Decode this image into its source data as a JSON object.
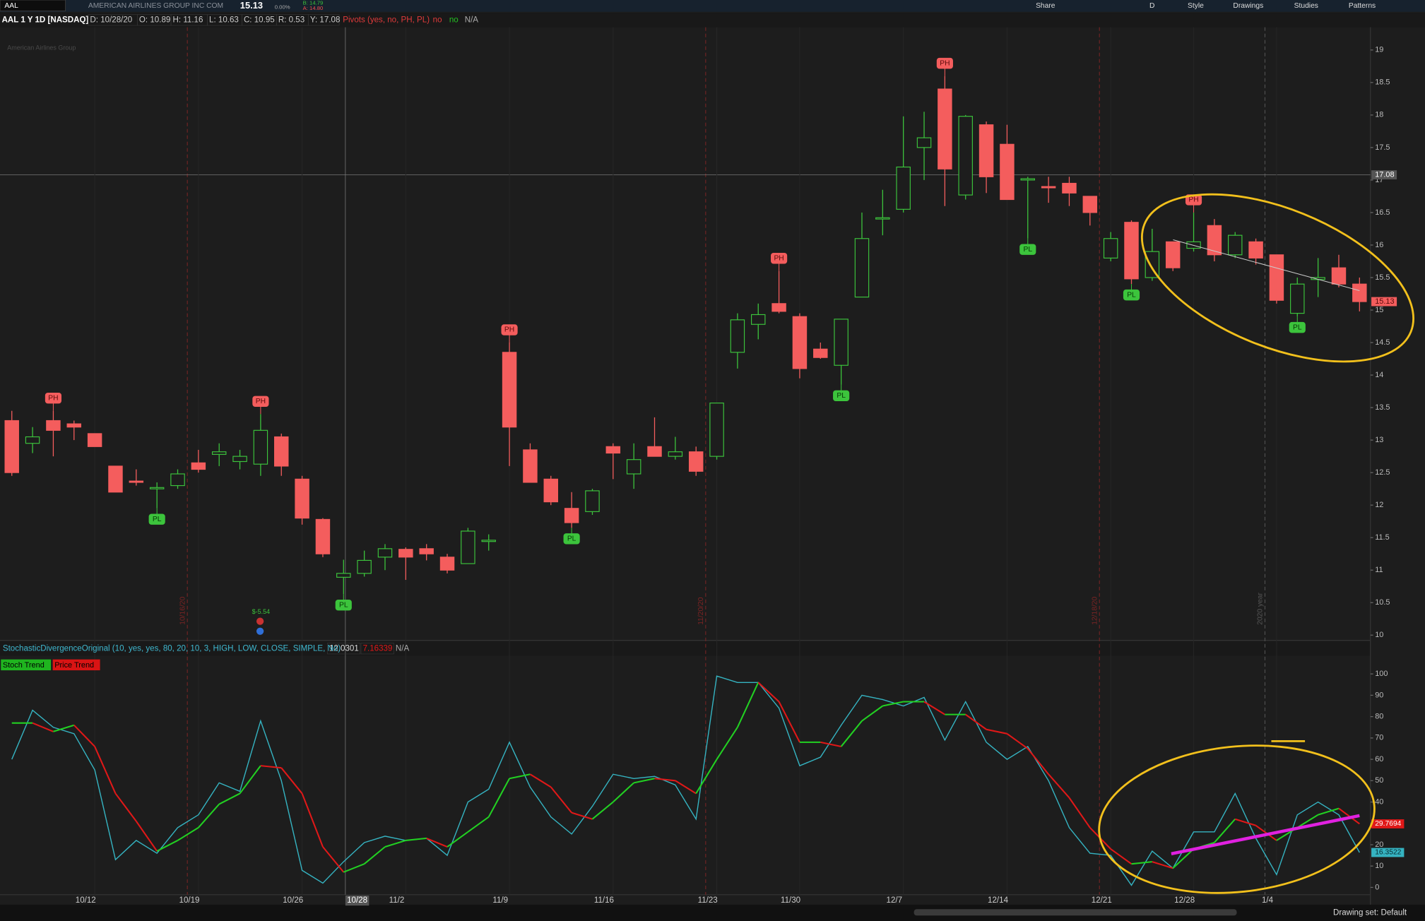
{
  "toolbar": {
    "symbol": "AAL",
    "company": "AMERICAN AIRLINES GROUP INC COM",
    "last": "15.13",
    "change": "0.00%",
    "bid": "B: 14.79",
    "ask": "A: 14.80",
    "buttons": [
      "Share",
      "D",
      "Style",
      "Drawings",
      "Studies",
      "Patterns"
    ]
  },
  "footer": {
    "drawing_set": "Drawing set: Default"
  },
  "chart_data": [
    {
      "type": "candlestick",
      "title": "AAL 1 Y 1D [NASDAQ]",
      "status": [
        "D: 10/28/20",
        "O: 10.89",
        "H: 11.16",
        "L: 10.63",
        "C: 10.95",
        "R: 0.53",
        "Y: 17.08"
      ],
      "study": "Pivots (yes, no, PH, PL)",
      "study_values": [
        "no",
        "no",
        "N/A"
      ],
      "watermark": "American Airlines Group",
      "categories": [
        null,
        null,
        null,
        null,
        "10/12",
        null,
        null,
        null,
        null,
        "10/19",
        null,
        null,
        null,
        null,
        "10/26",
        null,
        null,
        null,
        null,
        "11/2",
        null,
        null,
        null,
        null,
        "11/9",
        null,
        null,
        null,
        null,
        "11/16",
        null,
        null,
        null,
        null,
        "11/23",
        null,
        null,
        null,
        "11/30",
        null,
        null,
        null,
        null,
        "12/7",
        null,
        null,
        null,
        null,
        "12/14",
        null,
        null,
        null,
        null,
        "12/21",
        null,
        null,
        null,
        "12/28",
        null,
        null,
        null,
        "1/4",
        null,
        null,
        null,
        null
      ],
      "open": [
        13.3,
        12.95,
        13.3,
        13.25,
        13.1,
        12.6,
        12.37,
        12.25,
        12.3,
        12.65,
        12.78,
        12.67,
        12.63,
        13.05,
        12.4,
        11.78,
        10.89,
        10.95,
        11.2,
        11.32,
        11.33,
        11.2,
        11.1,
        11.44,
        14.35,
        12.85,
        12.4,
        11.95,
        11.9,
        12.9,
        12.48,
        12.9,
        12.75,
        12.82,
        12.75,
        14.35,
        14.78,
        15.1,
        14.9,
        14.4,
        14.15,
        15.2,
        16.4,
        16.55,
        17.5,
        18.4,
        16.77,
        17.85,
        17.55,
        17.0,
        16.9,
        16.95,
        16.75,
        15.8,
        16.35,
        15.5,
        16.05,
        15.95,
        16.3,
        15.85,
        16.05,
        15.85,
        14.95,
        15.47,
        15.65,
        15.4
      ],
      "high": [
        13.45,
        13.2,
        13.45,
        13.3,
        13.1,
        12.6,
        12.55,
        12.35,
        12.55,
        12.85,
        12.95,
        12.85,
        13.4,
        13.1,
        12.45,
        11.8,
        11.16,
        11.3,
        11.4,
        11.35,
        11.4,
        11.25,
        11.65,
        11.55,
        14.5,
        12.95,
        12.45,
        12.2,
        12.25,
        12.95,
        12.95,
        13.35,
        13.05,
        12.9,
        13.57,
        14.95,
        15.1,
        15.6,
        14.95,
        14.5,
        14.86,
        16.5,
        16.85,
        17.98,
        18.05,
        18.6,
        18.0,
        17.9,
        17.85,
        17.05,
        17.05,
        17.05,
        16.75,
        16.2,
        16.38,
        16.25,
        16.05,
        16.5,
        16.4,
        16.2,
        16.1,
        15.85,
        15.5,
        15.8,
        15.85,
        15.5
      ],
      "low": [
        12.45,
        12.8,
        12.75,
        13.0,
        12.9,
        12.2,
        12.3,
        11.95,
        12.25,
        12.5,
        12.6,
        12.55,
        12.45,
        12.45,
        11.7,
        11.2,
        10.63,
        10.9,
        11.0,
        10.85,
        11.15,
        10.95,
        11.1,
        11.3,
        12.6,
        12.35,
        12.0,
        11.65,
        11.85,
        12.4,
        12.25,
        12.75,
        12.7,
        12.45,
        12.7,
        14.1,
        14.55,
        14.95,
        13.95,
        14.25,
        13.85,
        15.2,
        16.15,
        16.5,
        17.0,
        16.6,
        16.7,
        16.8,
        16.7,
        16.1,
        16.65,
        16.6,
        16.3,
        15.75,
        15.4,
        15.45,
        15.6,
        15.9,
        15.75,
        15.8,
        15.7,
        15.1,
        14.9,
        15.2,
        15.35,
        14.98
      ],
      "close": [
        12.5,
        13.05,
        13.15,
        13.2,
        12.9,
        12.2,
        12.35,
        12.27,
        12.48,
        12.55,
        12.82,
        12.75,
        13.15,
        12.6,
        11.8,
        11.25,
        10.95,
        11.15,
        11.33,
        11.2,
        11.25,
        11.0,
        11.6,
        11.46,
        13.2,
        12.35,
        12.05,
        11.73,
        12.22,
        12.8,
        12.7,
        12.75,
        12.82,
        12.52,
        13.57,
        14.85,
        14.93,
        14.98,
        14.1,
        14.27,
        14.86,
        16.1,
        16.42,
        17.2,
        17.65,
        17.17,
        17.98,
        17.05,
        16.7,
        17.02,
        16.88,
        16.8,
        16.5,
        16.1,
        15.48,
        15.9,
        15.65,
        16.05,
        15.85,
        16.15,
        15.8,
        15.15,
        15.4,
        15.5,
        15.4,
        15.13
      ],
      "pivot_labels": [
        null,
        null,
        "PH",
        null,
        null,
        null,
        null,
        "PL",
        null,
        null,
        null,
        null,
        "PH",
        null,
        null,
        null,
        "PL",
        null,
        null,
        null,
        null,
        null,
        null,
        null,
        "PH",
        null,
        null,
        "PL",
        null,
        null,
        null,
        null,
        null,
        null,
        null,
        null,
        null,
        "PH",
        null,
        null,
        "PL",
        null,
        null,
        null,
        null,
        "PH",
        null,
        null,
        null,
        "PL",
        null,
        null,
        null,
        null,
        "PL",
        null,
        null,
        "PH",
        null,
        null,
        null,
        null,
        "PL",
        null,
        null,
        null
      ],
      "up_color": "#3cc43c",
      "down_color": "#f45d5d",
      "ylim": [
        9.92,
        19.35
      ],
      "yticks": [
        10,
        10.5,
        11,
        11.5,
        12,
        12.5,
        13,
        13.5,
        14,
        14.5,
        15,
        15.5,
        16,
        16.5,
        17,
        17.5,
        18,
        18.5,
        19
      ],
      "cursor_price": 17.08,
      "cursor_label": "10/28",
      "markers": [
        "10/16/20",
        "11/20/20",
        "12/18/20",
        "2020 year"
      ],
      "earnings": "$-5.54"
    },
    {
      "type": "line",
      "title": "StochasticDivergenceOriginal (10, yes, yes, 80, 20, 10, 3, HIGH, LOW, CLOSE, SIMPLE, No)",
      "na": "N/A",
      "legend": [
        {
          "label": "Stoch Trend",
          "color": "#1fb51f"
        },
        {
          "label": "Price Trend",
          "color": "#d91414"
        }
      ],
      "series": [
        {
          "color": "#35b3c1",
          "values": [
            60,
            83,
            75,
            72,
            55,
            13,
            22,
            16,
            28,
            34,
            49,
            45,
            78,
            50,
            8,
            2,
            12.0301,
            21,
            24,
            22,
            23,
            15,
            40,
            46,
            68,
            47,
            33,
            25,
            38,
            53,
            51,
            52,
            48,
            32,
            99,
            96,
            96,
            84,
            57,
            61,
            76,
            90,
            88,
            85,
            89,
            69,
            87,
            68,
            60,
            66,
            50,
            28,
            16,
            15,
            1,
            17,
            9,
            26,
            26,
            44,
            23,
            6,
            34,
            40,
            34,
            16.3522
          ]
        },
        {
          "up_color": "#22d022",
          "down_color": "#e01818",
          "values": [
            77,
            77,
            73,
            76,
            66,
            44,
            31,
            17,
            22,
            28,
            39,
            44,
            57,
            56,
            44,
            19,
            7.16339,
            11,
            19,
            22,
            23,
            19,
            26,
            33,
            51,
            53,
            47,
            35,
            32,
            40,
            49,
            51,
            50,
            44,
            60,
            75,
            96,
            87,
            68,
            68,
            66,
            78,
            85,
            87,
            87,
            81,
            81,
            74,
            72,
            65,
            53,
            42,
            28,
            18,
            11,
            12,
            9,
            18,
            21,
            32,
            29,
            22,
            28,
            34,
            37,
            29.7694
          ]
        }
      ],
      "ylim": [
        -3.4,
        108.5
      ],
      "yticks": [
        0,
        10,
        20,
        30,
        40,
        50,
        60,
        70,
        80,
        90,
        100
      ]
    }
  ]
}
